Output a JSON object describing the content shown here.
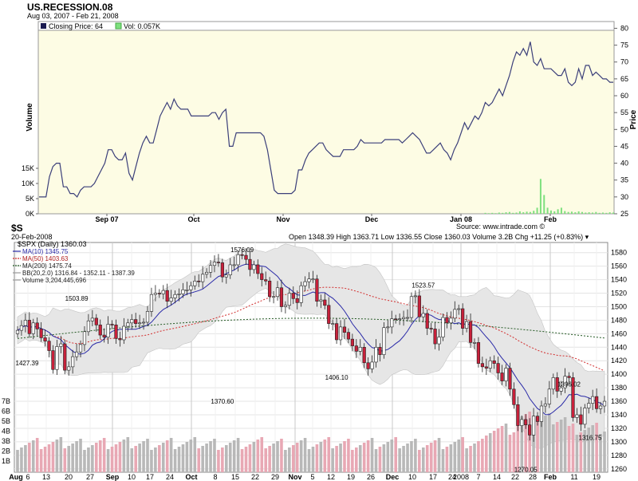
{
  "top_chart": {
    "title": "US.RECESSION.08",
    "date_range": "Aug 03, 2007 - Feb 21, 2008",
    "legend_close": "Closing Price: 64",
    "legend_vol": "Vol: 0.057K",
    "source": "Source: www.intrade.com ©",
    "colors": {
      "background": "#fdfce4",
      "line": "#3b3f7a",
      "volume": "#7ee07e"
    }
  },
  "bottom_chart": {
    "symbol": "$S",
    "date": "20-Feb-2008",
    "title": "$SPX (Daily) 1360.03",
    "ohlc": "Open 1348.39  High 1363.71  Low 1336.55  Close 1360.03  Volume 3.2B  Chg +11.25 (+0.83%) ▾",
    "indicators": [
      {
        "label": "MA(10) 1345.75",
        "color": "#2a2aa8"
      },
      {
        "label": "MA(50) 1403.63",
        "color": "#d22d2d"
      },
      {
        "label": "MA(200) 1475.74",
        "color": "#245a24"
      },
      {
        "label": "BB(20,2.0) 1316.84 - 1352.11 - 1387.39",
        "color": "#9a9a9a"
      },
      {
        "label": "Volume 3,204,445,696",
        "color": "#9a9a9a"
      }
    ],
    "colors": {
      "up": "#ffffff",
      "down": "#c8203a",
      "band": "#e6e6e6"
    }
  },
  "chart_data": [
    {
      "type": "line",
      "title": "US.RECESSION.08",
      "xlabel": "",
      "ylabel": "Price",
      "y2label": "Volume",
      "ylim": [
        25,
        82
      ],
      "yticks": [
        25,
        30,
        35,
        40,
        45,
        50,
        55,
        60,
        65,
        70,
        75,
        80
      ],
      "volume_ticks": [
        "0K",
        "5K",
        "10K",
        "15K"
      ],
      "x_tick_labels": [
        "Sep 07",
        "Oct",
        "Nov",
        "Dec",
        "Jan 08",
        "Feb"
      ],
      "series": [
        {
          "name": "Closing Price",
          "values": [
            30,
            30,
            30,
            36,
            39,
            40,
            40,
            33,
            33,
            31,
            31,
            30,
            32,
            33,
            33,
            33,
            34,
            36,
            38,
            40,
            44,
            44,
            42,
            41,
            41,
            43,
            37,
            35,
            39,
            43,
            46,
            48,
            46,
            46,
            50,
            54,
            56,
            58,
            56,
            59,
            57,
            56,
            56,
            56,
            54,
            54,
            54,
            54,
            54,
            54,
            55,
            55,
            53,
            55,
            56,
            45,
            45,
            49,
            49,
            49,
            49,
            49,
            49,
            49,
            49,
            48,
            44,
            38,
            32,
            31,
            31,
            31,
            31,
            31,
            32,
            38,
            38,
            41,
            43,
            44,
            45,
            46,
            46,
            44,
            43,
            42,
            42,
            42,
            44,
            44,
            44,
            44,
            45,
            47,
            46,
            46,
            46,
            46,
            46,
            46,
            47,
            47,
            47,
            47,
            47,
            46,
            47,
            48,
            49,
            48,
            47,
            45,
            43,
            43,
            44,
            45,
            46,
            44,
            43,
            41,
            44,
            46,
            49,
            52,
            50,
            52,
            54,
            53,
            55,
            58,
            57,
            58,
            60,
            62,
            60,
            63,
            66,
            70,
            73,
            72,
            74,
            72,
            76,
            70,
            69,
            71,
            68,
            68,
            68,
            67,
            66,
            66,
            68,
            64,
            63,
            64,
            68,
            65,
            69,
            69,
            66,
            67,
            66,
            65,
            65,
            64,
            64
          ]
        }
      ],
      "volume": [
        0,
        0,
        0,
        0,
        0,
        0,
        0,
        0,
        0,
        0,
        0,
        0,
        0,
        0,
        0,
        0,
        0,
        0,
        0,
        0,
        0,
        0,
        0,
        0,
        0,
        0,
        0,
        0,
        0,
        0,
        0,
        0,
        0,
        0,
        0,
        0,
        0,
        0,
        0,
        0,
        0,
        0,
        0,
        0,
        0,
        0,
        0,
        0,
        0,
        0,
        0,
        0,
        0,
        0,
        0,
        0,
        0,
        0,
        0,
        0,
        0,
        0,
        0,
        0,
        0,
        0,
        0,
        0,
        0,
        0,
        0,
        0,
        0,
        0,
        0,
        0,
        0,
        0,
        0,
        0,
        0,
        0,
        0,
        0,
        0,
        0,
        0,
        0,
        0,
        0,
        0,
        0,
        0,
        0,
        0,
        0,
        0,
        0,
        0,
        0,
        0,
        0,
        0,
        0,
        0,
        0,
        0,
        0,
        0,
        0,
        0,
        0,
        0,
        0,
        0,
        0,
        0,
        0,
        0,
        0,
        0,
        0,
        0,
        0,
        0,
        0,
        0,
        0,
        0,
        0.3,
        0.2,
        0.3,
        0.2,
        0.4,
        0.3,
        0.5,
        0.6,
        0.3,
        0.4,
        0.8,
        0.5,
        0.7,
        0.6,
        1.0,
        2.0,
        11.5,
        6.2,
        2.0,
        1.1,
        0.8,
        1.5,
        2.0,
        0.9,
        0.6,
        0.7,
        0.5,
        0.8,
        0.6,
        0.4,
        0.5,
        0.4,
        0.6,
        0.3,
        0.4,
        0.3,
        0.5,
        0.4
      ]
    },
    {
      "type": "candlestick",
      "title": "$SPX (Daily) 1360.03",
      "ylim": [
        1255,
        1595
      ],
      "yticks": [
        1260,
        1280,
        1300,
        1320,
        1340,
        1360,
        1380,
        1400,
        1420,
        1440,
        1460,
        1480,
        1500,
        1520,
        1540,
        1560,
        1580
      ],
      "volume_ticks": [
        "1B",
        "2B",
        "3B",
        "4B",
        "5B",
        "6B",
        "7B"
      ],
      "x_tick_labels": [
        "Aug",
        "6",
        "13",
        "20",
        "27",
        "Sep",
        "10",
        "17",
        "24",
        "Oct",
        "8",
        "15",
        "22",
        "29",
        "Nov",
        "5",
        "12",
        "19",
        "26",
        "Dec",
        "10",
        "17",
        "24",
        "2008",
        "7",
        "14",
        "22",
        "28",
        "Feb",
        "11",
        "19"
      ],
      "annotations": [
        {
          "label": "1576.09",
          "value": 1576.09
        },
        {
          "label": "1503.89",
          "value": 1503.89
        },
        {
          "label": "1427.39",
          "value": 1427.39
        },
        {
          "label": "1370.60",
          "value": 1370.6
        },
        {
          "label": "1523.57",
          "value": 1523.57
        },
        {
          "label": "1406.10",
          "value": 1406.1
        },
        {
          "label": "1396.02",
          "value": 1396.02
        },
        {
          "label": "1316.75",
          "value": 1316.75
        },
        {
          "label": "1270.05",
          "value": 1270.05
        }
      ],
      "close": [
        1465,
        1472,
        1480,
        1460,
        1476,
        1467,
        1454,
        1449,
        1435,
        1407,
        1441,
        1445,
        1406,
        1411,
        1426,
        1433,
        1444,
        1463,
        1479,
        1483,
        1473,
        1458,
        1455,
        1474,
        1473,
        1453,
        1451,
        1471,
        1476,
        1481,
        1475,
        1476,
        1477,
        1493,
        1518,
        1520,
        1519,
        1524,
        1508,
        1513,
        1518,
        1519,
        1525,
        1525,
        1531,
        1538,
        1537,
        1548,
        1551,
        1561,
        1566,
        1565,
        1544,
        1547,
        1562,
        1562,
        1577,
        1576,
        1570,
        1555,
        1562,
        1549,
        1540,
        1538,
        1515,
        1515,
        1528,
        1500,
        1502,
        1520,
        1512,
        1506,
        1531,
        1537,
        1541,
        1541,
        1508,
        1510,
        1502,
        1475,
        1475,
        1451,
        1470,
        1462,
        1452,
        1442,
        1434,
        1440,
        1417,
        1408,
        1418,
        1440,
        1429,
        1469,
        1470,
        1482,
        1481,
        1482,
        1484,
        1484,
        1515,
        1516,
        1485,
        1490,
        1468,
        1467,
        1445,
        1455,
        1484,
        1476,
        1483,
        1496,
        1497,
        1468,
        1478,
        1447,
        1447,
        1416,
        1411,
        1409,
        1420,
        1416,
        1402,
        1390,
        1409,
        1378,
        1355,
        1324,
        1333,
        1325,
        1310,
        1338,
        1330,
        1353,
        1356,
        1378,
        1395,
        1375,
        1380,
        1397,
        1395,
        1336,
        1340,
        1326,
        1350,
        1357,
        1367,
        1349,
        1353,
        1360
      ]
    }
  ]
}
